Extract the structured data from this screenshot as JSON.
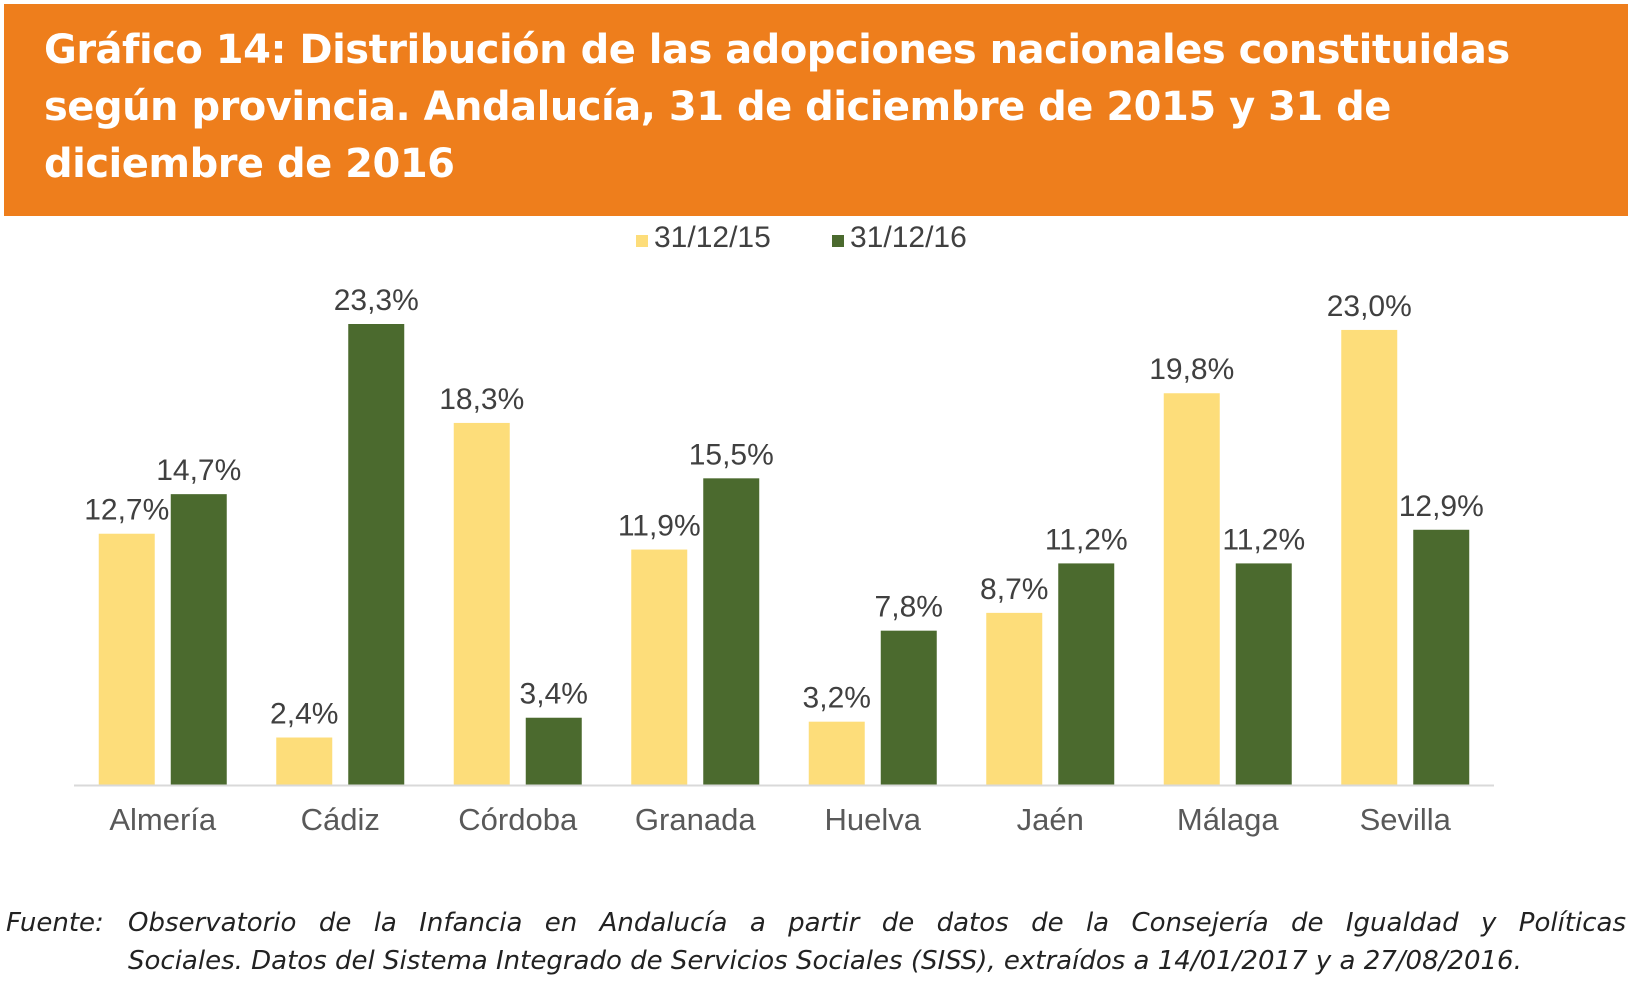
{
  "title": "Gráfico 14: Distribución de las adopciones nacionales constituidas según provincia. Andalucía, 31 de diciembre de 2015 y 31 de diciembre de 2016",
  "source": {
    "label": "Fuente:",
    "line1": "Observatorio de la Infancia en Andalucía a partir de datos de la Consejería de Igualdad y Políticas",
    "line2": "Sociales. Datos del Sistema Integrado de Servicios Sociales (SISS), extraídos a 14/01/2017 y a 27/08/2016."
  },
  "chart_data": {
    "type": "bar",
    "categories": [
      "Almería",
      "Cádiz",
      "Córdoba",
      "Granada",
      "Huelva",
      "Jaén",
      "Málaga",
      "Sevilla"
    ],
    "series": [
      {
        "name": "31/12/15",
        "color": "#FDDD7A",
        "values": [
          12.7,
          2.4,
          18.3,
          11.9,
          3.2,
          8.7,
          19.8,
          23.0
        ],
        "labels": [
          "12,7%",
          "2,4%",
          "18,3%",
          "11,9%",
          "3,2%",
          "8,7%",
          "19,8%",
          "23,0%"
        ]
      },
      {
        "name": "31/12/16",
        "color": "#4B6A2E",
        "values": [
          14.7,
          23.3,
          3.4,
          15.5,
          7.8,
          11.2,
          11.2,
          12.9
        ],
        "labels": [
          "14,7%",
          "23,3%",
          "3,4%",
          "15,5%",
          "7,8%",
          "11,2%",
          "11,2%",
          "12,9%"
        ]
      }
    ],
    "ylim": [
      0,
      23.3
    ],
    "legend_position": "top-center",
    "grid": false,
    "axis_color": "#D9D9D9"
  }
}
